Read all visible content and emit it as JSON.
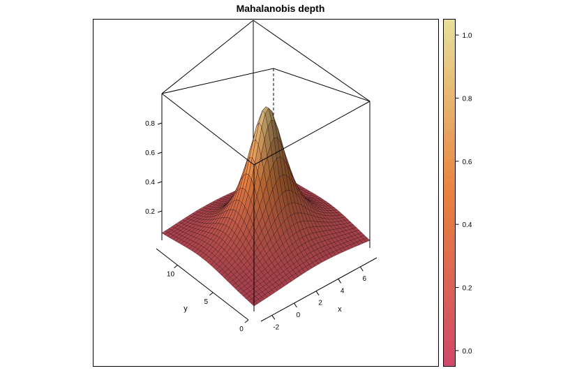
{
  "chart_data": {
    "type": "surface3d",
    "title": "Mahalanobis depth",
    "xlabel": "x",
    "ylabel": "y",
    "zlabel": "",
    "x_ticks": [
      -2,
      0,
      2,
      4,
      6
    ],
    "y_ticks": [
      0,
      5,
      10
    ],
    "z_ticks": [
      0.2,
      0.4,
      0.6,
      0.8
    ],
    "xlim": [
      -3,
      7.5
    ],
    "ylim": [
      0,
      13
    ],
    "zlim": [
      0,
      1
    ],
    "peak": {
      "x": 2.2,
      "y": 6.3,
      "z": 0.95
    },
    "colorkey": {
      "ticks": [
        "0.0",
        "0.2",
        "0.4",
        "0.6",
        "0.8",
        "1.0"
      ],
      "range": [
        -0.05,
        1.05
      ],
      "color_low": "#d0476a",
      "color_mid": "#e8823e",
      "color_high": "#e6e09a"
    }
  }
}
